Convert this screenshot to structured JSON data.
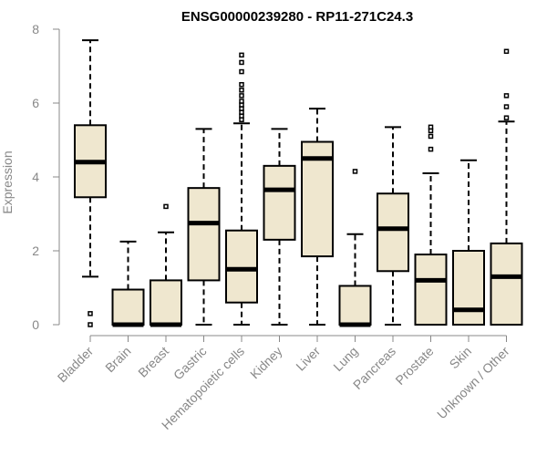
{
  "chart_data": {
    "type": "boxplot",
    "title": "ENSG00000239280 - RP11-271C24.3",
    "xlabel": "",
    "ylabel": "Expression",
    "ylim": [
      0,
      8
    ],
    "yticks": [
      0,
      2,
      4,
      6,
      8
    ],
    "grid": false,
    "categories": [
      "Bladder",
      "Brain",
      "Breast",
      "Gastric",
      "Hematopoietic cells",
      "Kidney",
      "Liver",
      "Lung",
      "Pancreas",
      "Prostate",
      "Skin",
      "Unknown / Other"
    ],
    "series": [
      {
        "name": "Bladder",
        "min": 1.3,
        "q1": 3.45,
        "median": 4.4,
        "q3": 5.4,
        "max": 7.7,
        "outliers": [
          0.3,
          0.0
        ]
      },
      {
        "name": "Brain",
        "min": 0.0,
        "q1": 0.0,
        "median": 0.0,
        "q3": 0.95,
        "max": 2.25,
        "outliers": []
      },
      {
        "name": "Breast",
        "min": 0.0,
        "q1": 0.0,
        "median": 0.0,
        "q3": 1.2,
        "max": 2.5,
        "outliers": [
          3.2
        ]
      },
      {
        "name": "Gastric",
        "min": 0.0,
        "q1": 1.2,
        "median": 2.75,
        "q3": 3.7,
        "max": 5.3,
        "outliers": []
      },
      {
        "name": "Hematopoietic cells",
        "min": 0.0,
        "q1": 0.6,
        "median": 1.5,
        "q3": 2.55,
        "max": 5.45,
        "outliers": [
          5.55,
          5.65,
          5.75,
          5.85,
          5.95,
          6.05,
          6.2,
          6.35,
          6.5,
          6.85,
          7.1,
          7.3
        ]
      },
      {
        "name": "Kidney",
        "min": 0.0,
        "q1": 2.3,
        "median": 3.65,
        "q3": 4.3,
        "max": 5.3,
        "outliers": []
      },
      {
        "name": "Liver",
        "min": 0.0,
        "q1": 1.85,
        "median": 4.5,
        "q3": 4.95,
        "max": 5.85,
        "outliers": []
      },
      {
        "name": "Lung",
        "min": 0.0,
        "q1": 0.0,
        "median": 0.0,
        "q3": 1.05,
        "max": 2.45,
        "outliers": [
          4.15
        ]
      },
      {
        "name": "Pancreas",
        "min": 0.0,
        "q1": 1.45,
        "median": 2.6,
        "q3": 3.55,
        "max": 5.35,
        "outliers": []
      },
      {
        "name": "Prostate",
        "min": 0.0,
        "q1": 0.0,
        "median": 1.2,
        "q3": 1.9,
        "max": 4.1,
        "outliers": [
          4.75,
          5.1,
          5.25,
          5.35
        ]
      },
      {
        "name": "Skin",
        "min": 0.0,
        "q1": 0.0,
        "median": 0.4,
        "q3": 2.0,
        "max": 4.45,
        "outliers": []
      },
      {
        "name": "Unknown / Other",
        "min": 0.0,
        "q1": 0.0,
        "median": 1.3,
        "q3": 2.2,
        "max": 5.5,
        "outliers": [
          5.6,
          5.9,
          6.2,
          7.4
        ]
      }
    ]
  }
}
